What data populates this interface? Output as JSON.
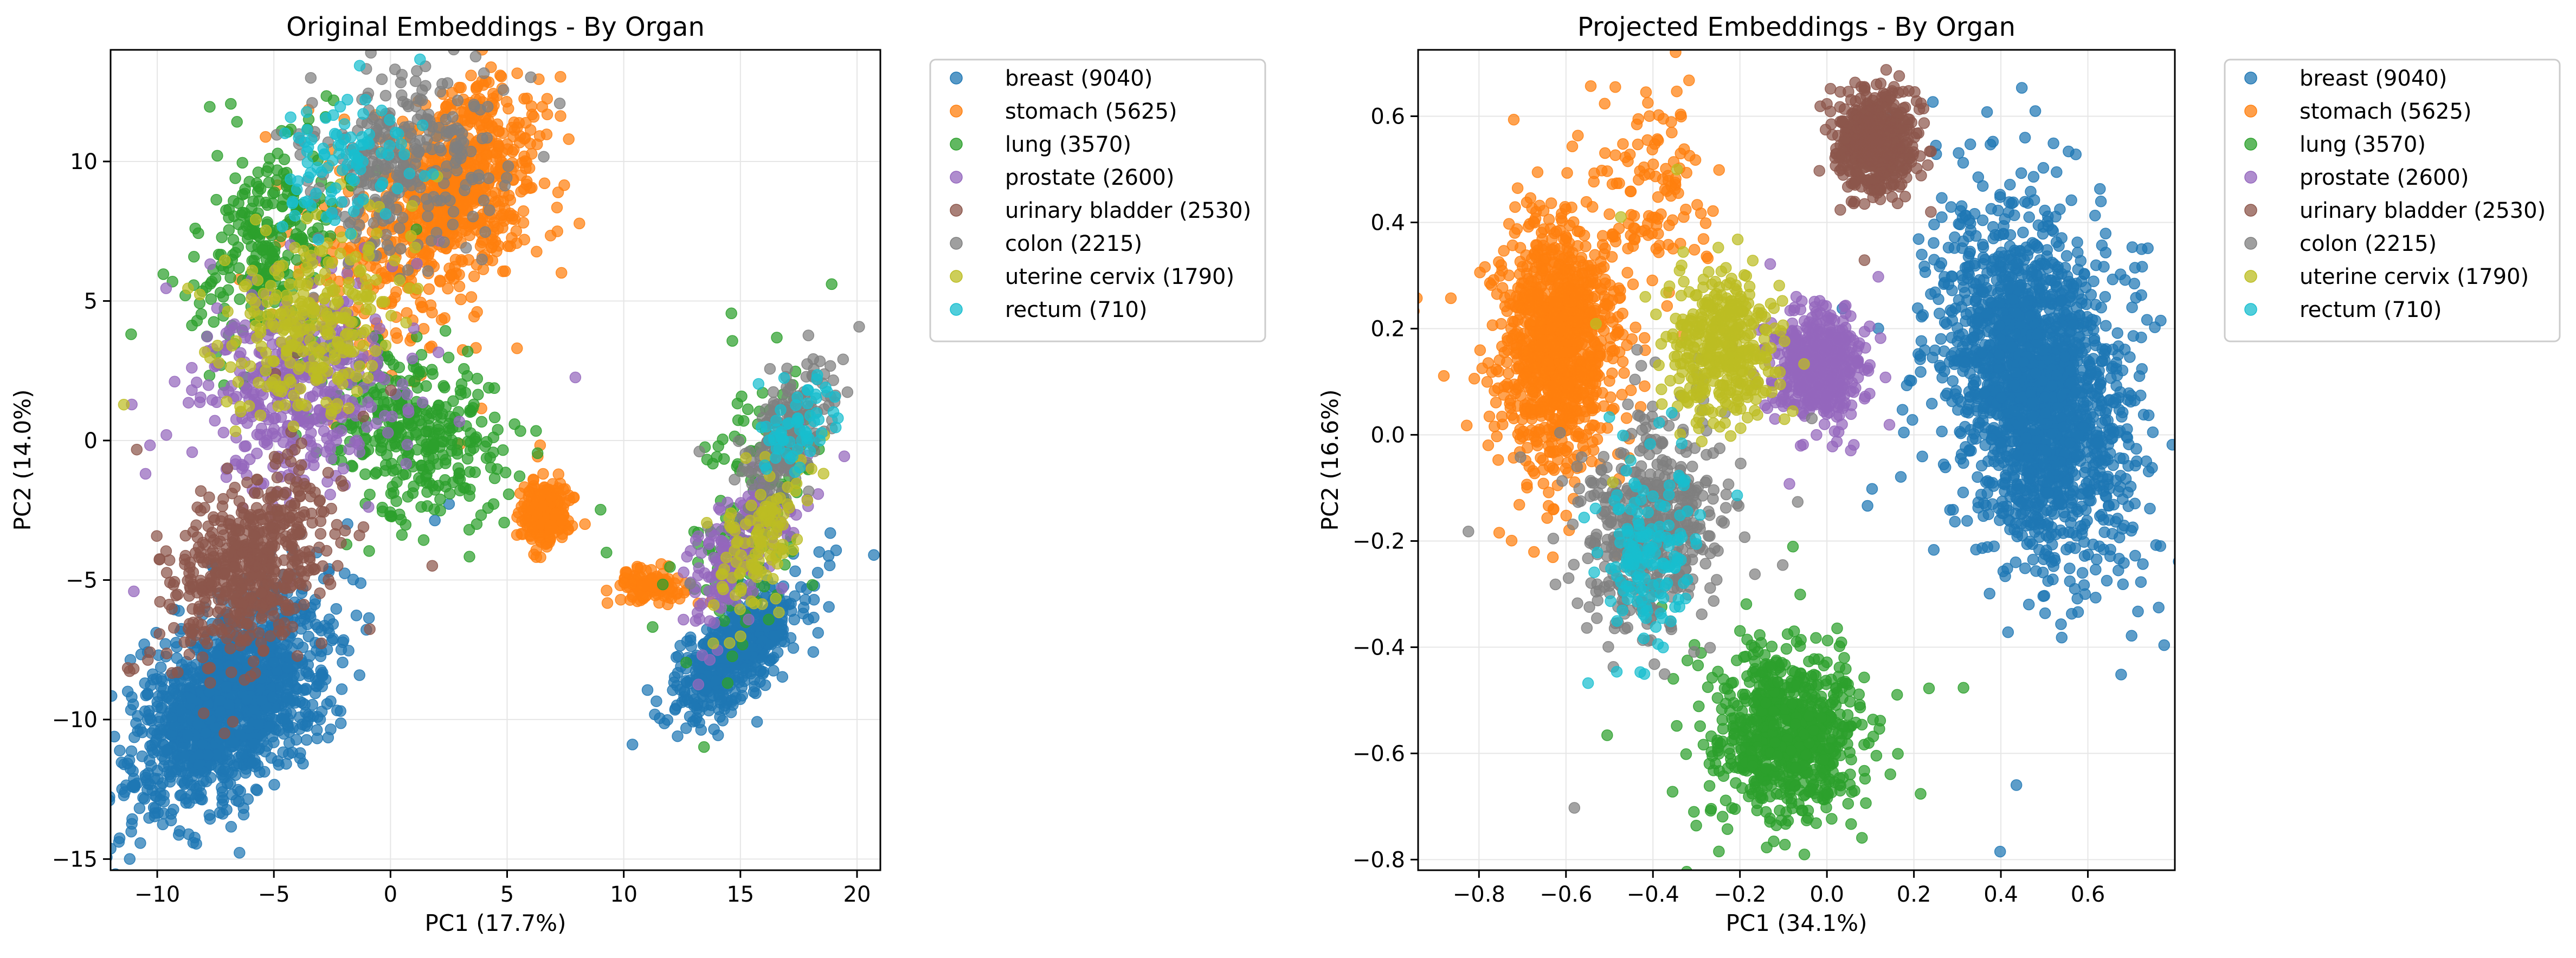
{
  "figure": {
    "colors": {
      "background": "#ffffff",
      "axes": "#000000",
      "grid": "#e6e6e6",
      "legend_border": "#cccccc"
    }
  },
  "chart_data": [
    {
      "type": "scatter",
      "title": "Original Embeddings - By Organ",
      "xlabel": "PC1 (17.7%)",
      "ylabel": "PC2 (14.0%)",
      "xlim": [
        -12.0,
        21.0
      ],
      "ylim": [
        -15.4,
        14.0
      ],
      "xticks": [
        -10,
        -5,
        0,
        5,
        10,
        15,
        20
      ],
      "yticks": [
        -15,
        -10,
        -5,
        0,
        5,
        10
      ],
      "xtick_labels": [
        "−10",
        "−5",
        "0",
        "5",
        "10",
        "15",
        "20"
      ],
      "ytick_labels": [
        "−15",
        "−10",
        "−5",
        "0",
        "5",
        "10"
      ],
      "grid": true,
      "legend_position": "outside-right-top",
      "series": [
        {
          "name": "breast (9040)",
          "color": "#1f77b4",
          "count": 9040,
          "clusters": [
            {
              "cx": -7.0,
              "cy": -9.5,
              "sx": 2.0,
              "sy": 1.9,
              "rho": 0.5,
              "w": 0.72
            },
            {
              "cx": 14.8,
              "cy": -7.6,
              "sx": 1.3,
              "sy": 1.1,
              "rho": 0.7,
              "w": 0.28
            }
          ]
        },
        {
          "name": "stomach (5625)",
          "color": "#ff7f0e",
          "count": 5625,
          "clusters": [
            {
              "cx": 3.0,
              "cy": 9.0,
              "sx": 1.6,
              "sy": 1.8,
              "rho": 0.3,
              "w": 0.55
            },
            {
              "cx": 6.6,
              "cy": -2.6,
              "sx": 0.5,
              "sy": 0.6,
              "rho": 0.0,
              "w": 0.2
            },
            {
              "cx": 11.2,
              "cy": -5.2,
              "sx": 0.7,
              "sy": 0.3,
              "rho": 0.0,
              "w": 0.1
            },
            {
              "cx": -0.5,
              "cy": 6.5,
              "sx": 2.0,
              "sy": 2.0,
              "rho": 0.0,
              "w": 0.15
            }
          ]
        },
        {
          "name": "lung (3570)",
          "color": "#2ca02c",
          "count": 3570,
          "clusters": [
            {
              "cx": 1.0,
              "cy": 0.3,
              "sx": 2.0,
              "sy": 1.5,
              "rho": -0.3,
              "w": 0.45
            },
            {
              "cx": -5.2,
              "cy": 7.0,
              "sx": 1.4,
              "sy": 2.0,
              "rho": 0.3,
              "w": 0.35
            },
            {
              "cx": 15.5,
              "cy": -2.5,
              "sx": 1.5,
              "sy": 2.5,
              "rho": 0.5,
              "w": 0.2
            }
          ]
        },
        {
          "name": "prostate (2600)",
          "color": "#9467bd",
          "count": 2600,
          "clusters": [
            {
              "cx": -4.0,
              "cy": 2.0,
              "sx": 2.2,
              "sy": 1.8,
              "rho": 0.2,
              "w": 0.7
            },
            {
              "cx": 15.0,
              "cy": -3.8,
              "sx": 1.2,
              "sy": 1.5,
              "rho": 0.6,
              "w": 0.3
            }
          ]
        },
        {
          "name": "urinary bladder (2530)",
          "color": "#8c564b",
          "count": 2530,
          "clusters": [
            {
              "cx": -6.0,
              "cy": -4.5,
              "sx": 1.7,
              "sy": 1.6,
              "rho": 0.3,
              "w": 1.0
            }
          ]
        },
        {
          "name": "colon (2215)",
          "color": "#7f7f7f",
          "count": 2215,
          "clusters": [
            {
              "cx": 0.5,
              "cy": 9.8,
              "sx": 2.0,
              "sy": 1.7,
              "rho": 0.2,
              "w": 0.6
            },
            {
              "cx": 17.0,
              "cy": 0.3,
              "sx": 1.0,
              "sy": 1.2,
              "rho": 0.5,
              "w": 0.4
            }
          ]
        },
        {
          "name": "uterine cervix (1790)",
          "color": "#bcbd22",
          "count": 1790,
          "clusters": [
            {
              "cx": -3.5,
              "cy": 4.2,
              "sx": 1.8,
              "sy": 1.7,
              "rho": 0.2,
              "w": 0.7
            },
            {
              "cx": 15.8,
              "cy": -3.6,
              "sx": 1.0,
              "sy": 1.5,
              "rho": 0.6,
              "w": 0.3
            }
          ]
        },
        {
          "name": "rectum (710)",
          "color": "#17becf",
          "count": 710,
          "clusters": [
            {
              "cx": -2.0,
              "cy": 10.0,
              "sx": 1.6,
              "sy": 1.2,
              "rho": 0.0,
              "w": 0.6
            },
            {
              "cx": 17.5,
              "cy": 0.5,
              "sx": 0.8,
              "sy": 0.8,
              "rho": 0.3,
              "w": 0.4
            }
          ]
        }
      ]
    },
    {
      "type": "scatter",
      "title": "Projected Embeddings - By Organ",
      "xlabel": "PC1 (34.1%)",
      "ylabel": "PC2 (16.6%)",
      "xlim": [
        -0.94,
        0.8
      ],
      "ylim": [
        -0.82,
        0.725
      ],
      "xticks": [
        -0.8,
        -0.6,
        -0.4,
        -0.2,
        0.0,
        0.2,
        0.4,
        0.6
      ],
      "yticks": [
        -0.8,
        -0.6,
        -0.4,
        -0.2,
        0.0,
        0.2,
        0.4,
        0.6
      ],
      "xtick_labels": [
        "−0.8",
        "−0.6",
        "−0.4",
        "−0.2",
        "0.0",
        "0.2",
        "0.4",
        "0.6"
      ],
      "ytick_labels": [
        "−0.8",
        "−0.6",
        "−0.4",
        "−0.2",
        "0.0",
        "0.2",
        "0.4",
        "0.6"
      ],
      "grid": true,
      "legend_position": "outside-right-top",
      "series": [
        {
          "name": "breast (9040)",
          "color": "#1f77b4",
          "count": 9040,
          "clusters": [
            {
              "cx": 0.48,
              "cy": 0.09,
              "sx": 0.1,
              "sy": 0.16,
              "rho": -0.3,
              "w": 1.0
            }
          ]
        },
        {
          "name": "stomach (5625)",
          "color": "#ff7f0e",
          "count": 5625,
          "clusters": [
            {
              "cx": -0.62,
              "cy": 0.17,
              "sx": 0.065,
              "sy": 0.11,
              "rho": 0.0,
              "w": 0.9
            },
            {
              "cx": -0.4,
              "cy": 0.45,
              "sx": 0.08,
              "sy": 0.1,
              "rho": 0.0,
              "w": 0.1
            }
          ]
        },
        {
          "name": "lung (3570)",
          "color": "#2ca02c",
          "count": 3570,
          "clusters": [
            {
              "cx": -0.09,
              "cy": -0.56,
              "sx": 0.08,
              "sy": 0.08,
              "rho": 0.0,
              "w": 1.0
            }
          ]
        },
        {
          "name": "prostate (2600)",
          "color": "#9467bd",
          "count": 2600,
          "clusters": [
            {
              "cx": -0.02,
              "cy": 0.13,
              "sx": 0.05,
              "sy": 0.05,
              "rho": 0.0,
              "w": 1.0
            }
          ]
        },
        {
          "name": "urinary bladder (2530)",
          "color": "#8c564b",
          "count": 2530,
          "clusters": [
            {
              "cx": 0.11,
              "cy": 0.55,
              "sx": 0.045,
              "sy": 0.045,
              "rho": 0.0,
              "w": 1.0
            }
          ]
        },
        {
          "name": "colon (2215)",
          "color": "#7f7f7f",
          "count": 2215,
          "clusters": [
            {
              "cx": -0.4,
              "cy": -0.17,
              "sx": 0.085,
              "sy": 0.1,
              "rho": 0.2,
              "w": 1.0
            }
          ]
        },
        {
          "name": "uterine cervix (1790)",
          "color": "#bcbd22",
          "count": 1790,
          "clusters": [
            {
              "cx": -0.24,
              "cy": 0.16,
              "sx": 0.06,
              "sy": 0.07,
              "rho": 0.0,
              "w": 1.0
            }
          ]
        },
        {
          "name": "rectum (710)",
          "color": "#17becf",
          "count": 710,
          "clusters": [
            {
              "cx": -0.41,
              "cy": -0.22,
              "sx": 0.05,
              "sy": 0.09,
              "rho": 0.1,
              "w": 1.0
            }
          ]
        }
      ]
    }
  ]
}
